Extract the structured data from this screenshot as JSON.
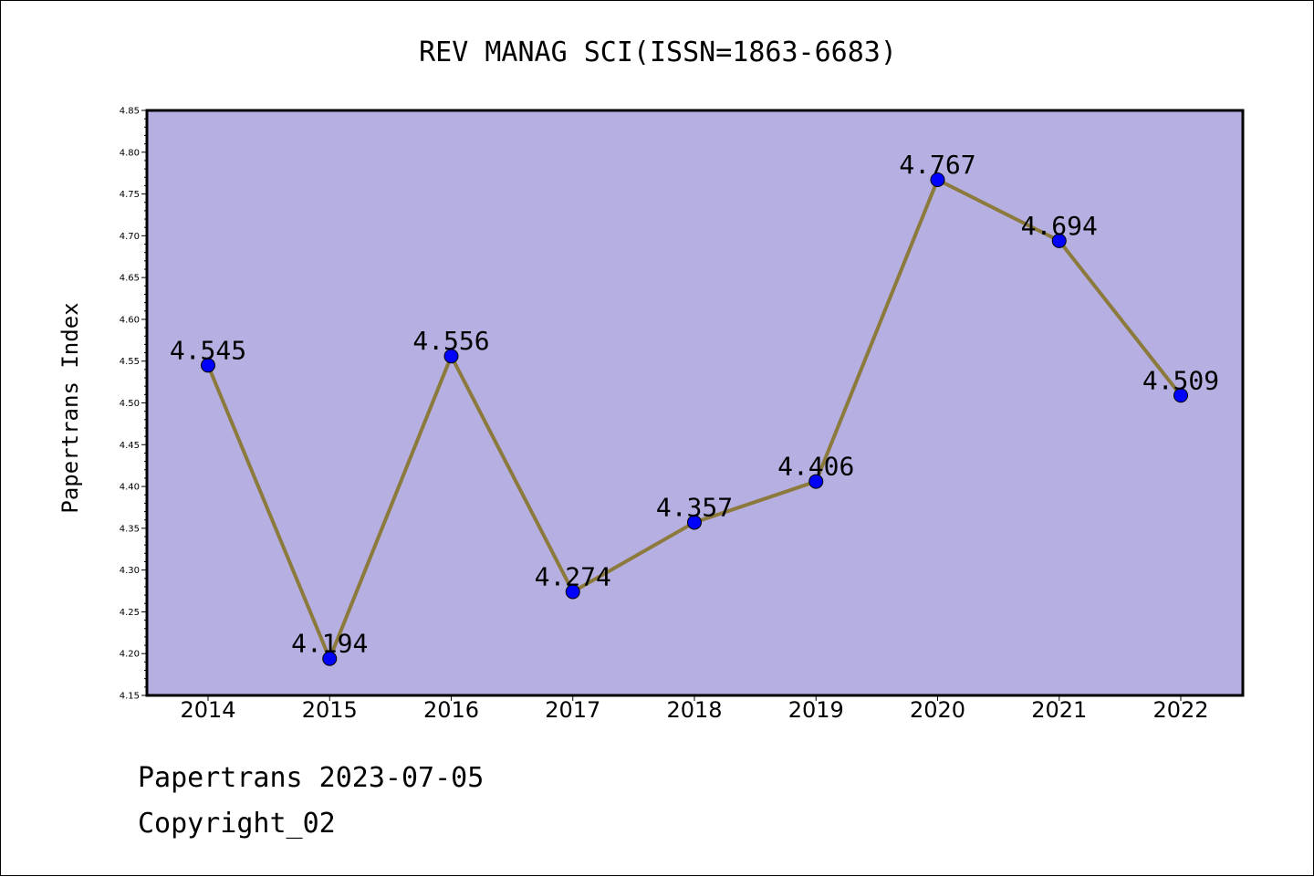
{
  "chart_data": {
    "type": "line",
    "title": "REV MANAG SCI(ISSN=1863-6683)",
    "ylabel": "Papertrans Index",
    "xlabel": "",
    "categories": [
      "2014",
      "2015",
      "2016",
      "2017",
      "2018",
      "2019",
      "2020",
      "2021",
      "2022"
    ],
    "series": [
      {
        "values": [
          4.545,
          4.194,
          4.556,
          4.274,
          4.357,
          4.406,
          4.767,
          4.694,
          4.509
        ],
        "data_labels": [
          "4.545",
          "4.194",
          "4.556",
          "4.274",
          "4.357",
          "4.406",
          "4.767",
          "4.694",
          "4.509"
        ]
      }
    ],
    "ylim": [
      4.15,
      4.85
    ],
    "yticks": [
      "4.15",
      "4.20",
      "4.25",
      "4.30",
      "4.35",
      "4.40",
      "4.45",
      "4.50",
      "4.55",
      "4.60",
      "4.65",
      "4.70",
      "4.75",
      "4.80",
      "4.85"
    ],
    "grid": false,
    "legend": "none",
    "colors": {
      "plot_background": "#b5afe2",
      "line": "#8c7a3c",
      "marker": "#0000ff"
    }
  },
  "footer": {
    "line1": "Papertrans 2023-07-05",
    "line2": "Copyright_02"
  }
}
